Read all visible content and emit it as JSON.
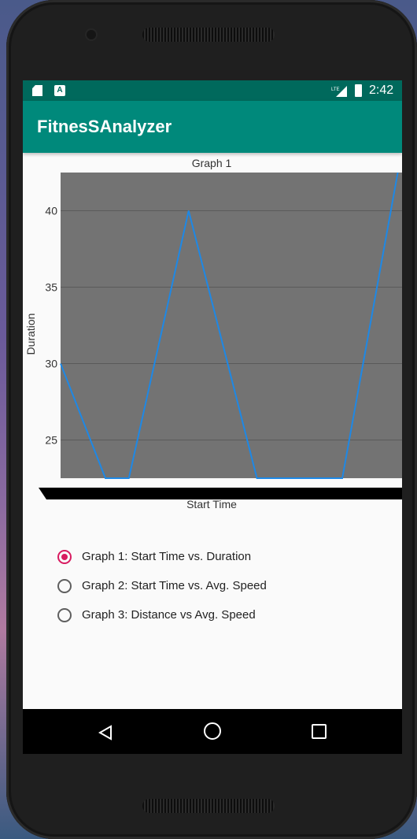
{
  "status_bar": {
    "time": "2:42",
    "network_label": "LTE",
    "icons": [
      "sd-card-icon",
      "a-notification-icon",
      "lte-signal-icon",
      "battery-charging-icon"
    ]
  },
  "app_bar": {
    "title": "FitnesSAnalyzer",
    "color": "#00897b",
    "status_color": "#00695c"
  },
  "chart_data": {
    "type": "line",
    "title": "Graph 1",
    "xlabel": "Start Time",
    "ylabel": "Duration",
    "yticks": [
      "25",
      "30",
      "35",
      "40"
    ],
    "ylim": [
      22.5,
      42.5
    ],
    "xlim": [
      0,
      8
    ],
    "grid": true,
    "plot_background": "#737373",
    "line_color": "#1e88e5",
    "series": [
      {
        "x": [
          0,
          1.05,
          1.6,
          3,
          4.6,
          6.6,
          7.9
        ],
        "y": [
          30,
          22.5,
          22.5,
          40,
          22.5,
          22.5,
          42.5
        ]
      }
    ]
  },
  "radio_options": [
    {
      "label": "Graph 1: Start Time vs. Duration",
      "checked": true
    },
    {
      "label": "Graph 2: Start Time vs. Avg. Speed",
      "checked": false
    },
    {
      "label": "Graph 3: Distance vs Avg. Speed",
      "checked": false
    }
  ],
  "accent_color": "#d81b60",
  "nav_bar": {
    "icons": [
      "back-icon",
      "home-icon",
      "recents-icon"
    ]
  }
}
